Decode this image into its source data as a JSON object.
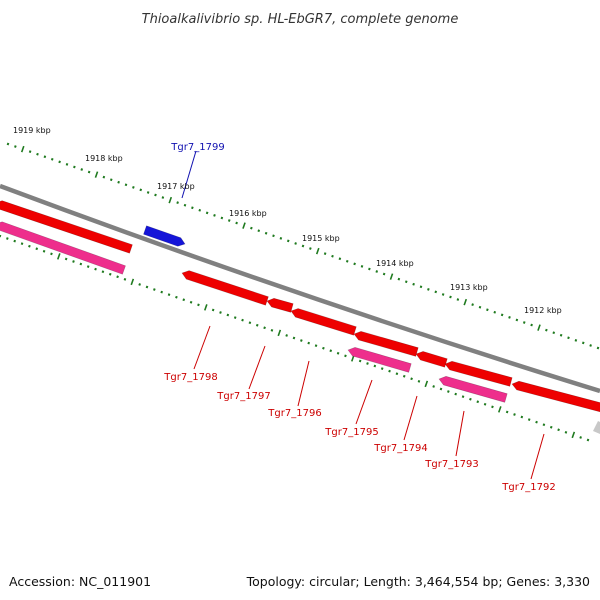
{
  "title": "Thioalkalivibrio sp. HL-EbGR7, complete genome",
  "footer": {
    "accession": "Accession: NC_011901",
    "summary": "Topology: circular; Length: 3,464,554 bp; Genes: 3,330"
  },
  "colors": {
    "backbone": "#808080",
    "gene_minus": "#ee0000",
    "gene_plus": "#1515d8",
    "rna_feature": "#ee2e8c",
    "tick": "#1f7a1f",
    "label_minus": "#cc0000",
    "label_plus": "#1010b0"
  },
  "scale_labels": [
    "1919 kbp",
    "1918 kbp",
    "1917 kbp",
    "1916 kbp",
    "1915 kbp",
    "1914 kbp",
    "1913 kbp",
    "1912 kbp"
  ],
  "gene_labels": [
    {
      "id": "Tgr7_1799",
      "text": "Tgr7_1799",
      "strand": "plus"
    },
    {
      "id": "Tgr7_1798",
      "text": "Tgr7_1798",
      "strand": "minus"
    },
    {
      "id": "Tgr7_1797",
      "text": "Tgr7_1797",
      "strand": "minus"
    },
    {
      "id": "Tgr7_1796",
      "text": "Tgr7_1796",
      "strand": "minus"
    },
    {
      "id": "Tgr7_1795",
      "text": "Tgr7_1795",
      "strand": "minus"
    },
    {
      "id": "Tgr7_1794",
      "text": "Tgr7_1794",
      "strand": "minus"
    },
    {
      "id": "Tgr7_1793",
      "text": "Tgr7_1793",
      "strand": "minus"
    },
    {
      "id": "Tgr7_1792",
      "text": "Tgr7_1792",
      "strand": "minus"
    }
  ]
}
